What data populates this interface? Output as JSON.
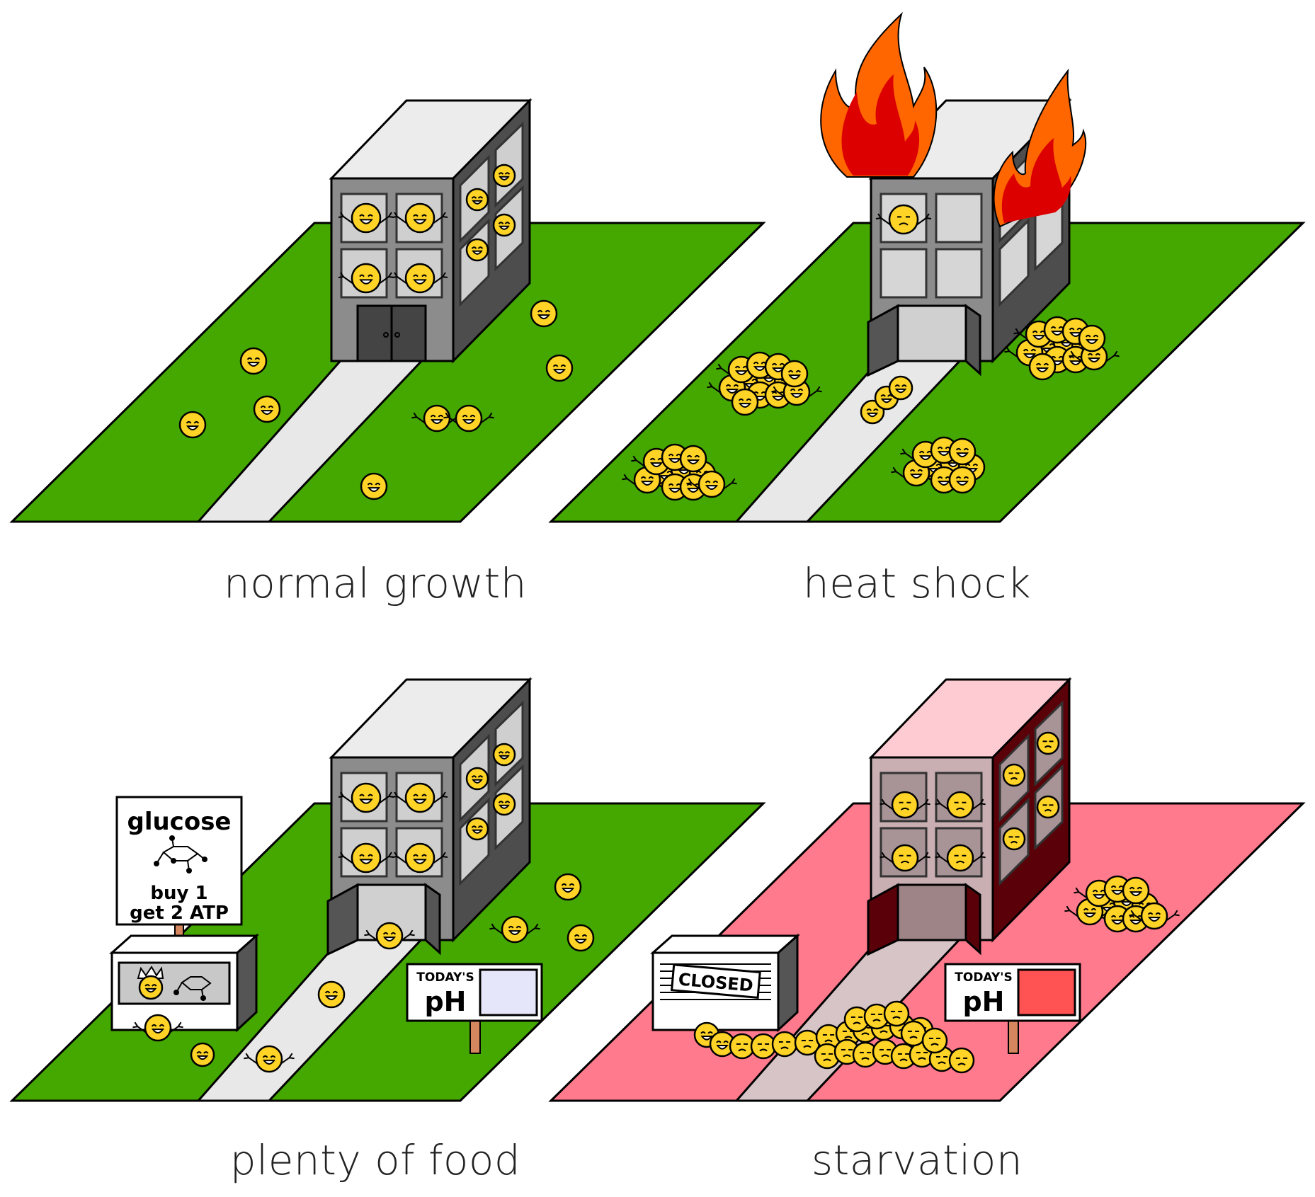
{
  "panels": [
    {
      "id": "normal",
      "caption": "normal growth",
      "mood": "happy",
      "condition": "normal"
    },
    {
      "id": "heat",
      "caption": "heat shock",
      "mood": "huddled",
      "condition": "fire"
    },
    {
      "id": "food",
      "caption": "plenty of food",
      "mood": "happy",
      "condition": "food"
    },
    {
      "id": "starve",
      "caption": "starvation",
      "mood": "sad",
      "condition": "starvation"
    }
  ],
  "glucose_sign": {
    "title": "glucose",
    "line1": "buy 1",
    "line2": "get 2 ATP"
  },
  "ph_sign_food": {
    "label_small": "TODAY'S",
    "label_big": "pH",
    "color": "#e6e6fa"
  },
  "ph_sign_starve": {
    "label_small": "TODAY'S",
    "label_big": "pH",
    "color": "#ff5252"
  },
  "closed_sign": "CLOSED",
  "colors": {
    "grass": "#44a800",
    "grass_starve": "#ff7a8c",
    "path": "#e8e8e8",
    "path_starve": "#d6c4c6",
    "building_front": "#8c8c8c",
    "building_side": "#4d4d4d",
    "building_top": "#ececec",
    "pink_front": "#c9aeb2",
    "pink_side": "#5a0008",
    "pink_top": "#ffcbd2",
    "cell": "#ffd426",
    "fire_outer": "#ff6600",
    "fire_inner": "#dd0000"
  },
  "icons": [
    "happy-cell-icon",
    "sad-cell-icon",
    "fire-icon",
    "crown-icon",
    "glucose-molecule-icon"
  ]
}
